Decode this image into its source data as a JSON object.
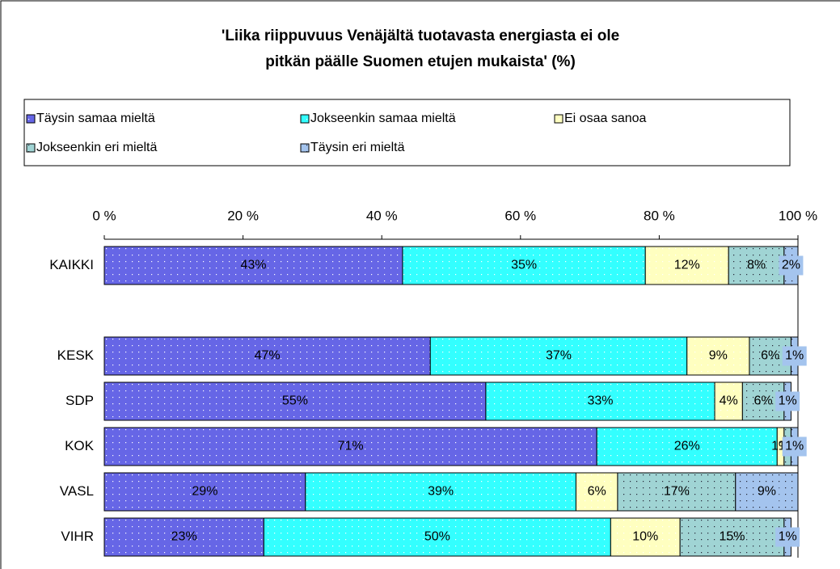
{
  "chart_data": {
    "type": "stacked_bar_horizontal",
    "title": [
      "'Liika riippuvuus Venäjältä tuotavasta energiasta ei ole",
      "pitkän päälle Suomen etujen mukaista' (%)"
    ],
    "categories": [
      "KAIKKI",
      null,
      "KESK",
      "SDP",
      "KOK",
      "VASL",
      "VIHR"
    ],
    "series": [
      {
        "name": "Täysin samaa mieltä",
        "color": "#6666e6",
        "values": [
          43,
          null,
          47,
          55,
          71,
          29,
          23
        ],
        "value_labels": [
          "43%",
          null,
          "47%",
          "55%",
          "71%",
          "29%",
          "23%"
        ]
      },
      {
        "name": "Jokseenkin samaa mieltä",
        "color": "#33ffff",
        "values": [
          35,
          null,
          37,
          33,
          26,
          39,
          50
        ],
        "value_labels": [
          "35%",
          null,
          "37%",
          "33%",
          "26%",
          "39%",
          "50%"
        ]
      },
      {
        "name": "Ei osaa sanoa",
        "color": "#ffffc0",
        "values": [
          12,
          null,
          9,
          4,
          1,
          6,
          10
        ],
        "value_labels": [
          "12%",
          null,
          "9%",
          "4%",
          "1%",
          "6%",
          "10%"
        ]
      },
      {
        "name": "Jokseenkin eri mieltä",
        "color": "#a0d4d4",
        "values": [
          8,
          null,
          6,
          6,
          1,
          17,
          15
        ],
        "value_labels": [
          "8%",
          null,
          "6%",
          "6%",
          "1%",
          "17%",
          "15%"
        ]
      },
      {
        "name": "Täysin eri mieltä",
        "color": "#a4c4ee",
        "values": [
          2,
          null,
          1,
          1,
          1,
          9,
          1
        ],
        "value_labels": [
          "2%",
          null,
          "1%",
          "1%",
          "1%",
          "9%",
          "1%"
        ]
      }
    ],
    "xlim": [
      0,
      100
    ],
    "xticks": [
      {
        "value": 0,
        "label": "0 %"
      },
      {
        "value": 20,
        "label": "20 %"
      },
      {
        "value": 40,
        "label": "40 %"
      },
      {
        "value": 60,
        "label": "60 %"
      },
      {
        "value": 80,
        "label": "80 %"
      },
      {
        "value": 100,
        "label": "100 %"
      }
    ],
    "legend": "top"
  }
}
